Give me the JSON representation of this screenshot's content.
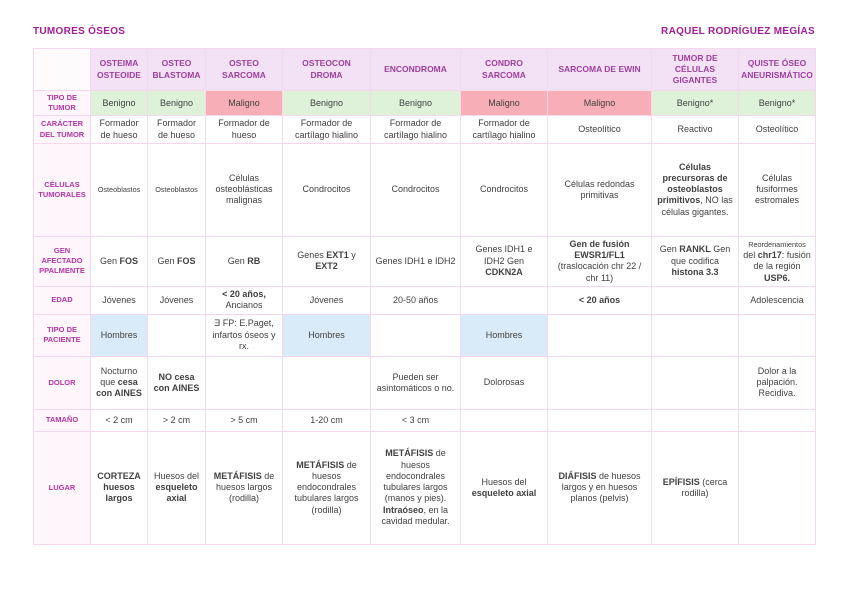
{
  "header": {
    "title": "TUMORES ÓSEOS",
    "author": "RAQUEL RODRÍGUEZ MEGÍAS"
  },
  "colors": {
    "accent_magenta": "#a51d96",
    "header_purple_bg": "#f3e2f6",
    "header_text": "#9e3f9d",
    "label_text": "#b536a8",
    "benign_green": "#def2da",
    "malign_pink": "#f8aeb6",
    "patient_blue": "#d9eaf8",
    "grid_pink": "#f5d7ee"
  },
  "table": {
    "columns": [
      "OSTEIMA OSTEOIDE",
      "OSTEO BLASTOMA",
      "OSTEO SARCOMA",
      "OSTEOCON DROMA",
      "ENCONDROMA",
      "CONDRO SARCOMA",
      "SARCOMA DE EWIN",
      "TUMOR DE CÉLULAS GIGANTES",
      "QUISTE ÓSEO ANEURISMÁTICO"
    ],
    "rows": [
      {
        "label": "TIPO DE TUMOR",
        "cells": [
          {
            "bg": "green",
            "parts": [
              {
                "t": "Benigno"
              }
            ]
          },
          {
            "bg": "green",
            "parts": [
              {
                "t": "Benigno"
              }
            ]
          },
          {
            "bg": "red",
            "parts": [
              {
                "t": "Maligno"
              }
            ]
          },
          {
            "bg": "green",
            "parts": [
              {
                "t": "Benigno"
              }
            ]
          },
          {
            "bg": "green",
            "parts": [
              {
                "t": "Benigno"
              }
            ]
          },
          {
            "bg": "red",
            "parts": [
              {
                "t": "Maligno"
              }
            ]
          },
          {
            "bg": "red",
            "parts": [
              {
                "t": "Maligno"
              }
            ]
          },
          {
            "bg": "green",
            "parts": [
              {
                "t": "Benigno*"
              }
            ]
          },
          {
            "bg": "green",
            "parts": [
              {
                "t": "Benigno*"
              }
            ]
          }
        ]
      },
      {
        "label": "CARÁCTER DEL TUMOR",
        "cells": [
          {
            "parts": [
              {
                "t": "Formador de hueso"
              }
            ]
          },
          {
            "parts": [
              {
                "t": "Formador de hueso"
              }
            ]
          },
          {
            "parts": [
              {
                "t": "Formador de hueso"
              }
            ]
          },
          {
            "parts": [
              {
                "t": "Formador de cartílago hialino"
              }
            ]
          },
          {
            "parts": [
              {
                "t": "Formador de cartílago hialino"
              }
            ]
          },
          {
            "parts": [
              {
                "t": "Formador de cartílago hialino"
              }
            ]
          },
          {
            "parts": [
              {
                "t": "Osteolítico"
              }
            ]
          },
          {
            "parts": [
              {
                "t": "Reactivo"
              }
            ]
          },
          {
            "parts": [
              {
                "t": "Osteolítico"
              }
            ]
          }
        ]
      },
      {
        "label": "CÉLULAS TUMORALES",
        "cells": [
          {
            "parts": [
              {
                "t": "Osteoblastos",
                "s": 1
              }
            ]
          },
          {
            "parts": [
              {
                "t": "Osteoblastos",
                "s": 1
              }
            ]
          },
          {
            "parts": [
              {
                "t": "Células osteoblásticas malignas"
              }
            ]
          },
          {
            "parts": [
              {
                "t": "Condrocitos"
              }
            ]
          },
          {
            "parts": [
              {
                "t": "Condrocitos"
              }
            ]
          },
          {
            "parts": [
              {
                "t": "Condrocitos"
              }
            ]
          },
          {
            "parts": [
              {
                "t": "Células redondas primitivas"
              }
            ]
          },
          {
            "parts": [
              {
                "t": "Células precursoras de osteoblastos primitivos",
                "b": 1
              },
              {
                "t": ", NO las células gigantes."
              }
            ]
          },
          {
            "parts": [
              {
                "t": "Células fusiformes estromales"
              }
            ]
          }
        ]
      },
      {
        "label": "GEN AFECTADO PPALMENTE",
        "cells": [
          {
            "parts": [
              {
                "t": "Gen "
              },
              {
                "t": "FOS",
                "b": 1
              }
            ]
          },
          {
            "parts": [
              {
                "t": "Gen "
              },
              {
                "t": "FOS",
                "b": 1
              }
            ]
          },
          {
            "parts": [
              {
                "t": "Gen "
              },
              {
                "t": "RB",
                "b": 1
              }
            ]
          },
          {
            "parts": [
              {
                "t": "Genes "
              },
              {
                "t": "EXT1",
                "b": 1
              },
              {
                "t": " y "
              },
              {
                "t": "EXT2",
                "b": 1
              }
            ]
          },
          {
            "parts": [
              {
                "t": "Genes IDH1 e IDH2"
              }
            ]
          },
          {
            "parts": [
              {
                "t": "Genes IDH1 e IDH2 Gen "
              },
              {
                "t": "CDKN2A",
                "b": 1
              }
            ]
          },
          {
            "parts": [
              {
                "t": "Gen de fusión EWSR1/FL1",
                "b": 1
              },
              {
                "t": " (traslocación chr 22 / chr 11)"
              }
            ]
          },
          {
            "parts": [
              {
                "t": "Gen "
              },
              {
                "t": "RANKL",
                "b": 1
              },
              {
                "t": " Gen que codifica "
              },
              {
                "t": "histona 3.3",
                "b": 1
              }
            ]
          },
          {
            "parts": [
              {
                "t": "Reordenamientos ",
                "s": 1
              },
              {
                "t": "del "
              },
              {
                "t": "chr17",
                "b": 1
              },
              {
                "t": ": fusión de la región "
              },
              {
                "t": "USP6.",
                "b": 1
              }
            ]
          }
        ]
      },
      {
        "label": "EDAD",
        "cells": [
          {
            "parts": [
              {
                "t": "Jóvenes"
              }
            ]
          },
          {
            "parts": [
              {
                "t": "Jóvenes"
              }
            ]
          },
          {
            "parts": [
              {
                "t": "< 20 años,",
                "b": 1
              },
              {
                "t": " Ancianos"
              }
            ]
          },
          {
            "parts": [
              {
                "t": "Jóvenes"
              }
            ]
          },
          {
            "parts": [
              {
                "t": "20-50 años"
              }
            ]
          },
          {
            "parts": []
          },
          {
            "parts": [
              {
                "t": "< 20 años",
                "b": 1
              }
            ]
          },
          {
            "parts": []
          },
          {
            "parts": [
              {
                "t": "Adolescencia"
              }
            ]
          }
        ]
      },
      {
        "label": "TIPO DE PACIENTE",
        "cells": [
          {
            "bg": "blue",
            "parts": [
              {
                "t": "Hombres"
              }
            ]
          },
          {
            "parts": []
          },
          {
            "parts": [
              {
                "t": "Ǝ FP: E.Paget, infartos óseos y rx."
              }
            ]
          },
          {
            "bg": "blue",
            "parts": [
              {
                "t": "Hombres"
              }
            ]
          },
          {
            "parts": []
          },
          {
            "bg": "blue",
            "parts": [
              {
                "t": "Hombres"
              }
            ]
          },
          {
            "parts": []
          },
          {
            "parts": []
          },
          {
            "parts": []
          }
        ]
      },
      {
        "label": "DOLOR",
        "cells": [
          {
            "parts": [
              {
                "t": "Nocturno que "
              },
              {
                "t": "cesa con AINES",
                "b": 1
              }
            ]
          },
          {
            "parts": [
              {
                "t": "NO cesa con AINES",
                "b": 1
              }
            ]
          },
          {
            "parts": []
          },
          {
            "parts": []
          },
          {
            "parts": [
              {
                "t": "Pueden ser asintomáticos o no."
              }
            ]
          },
          {
            "parts": [
              {
                "t": "Dolorosas"
              }
            ]
          },
          {
            "parts": []
          },
          {
            "parts": []
          },
          {
            "parts": [
              {
                "t": "Dolor a la palpación. Recidiva."
              }
            ]
          }
        ]
      },
      {
        "label": "TAMAÑO",
        "cells": [
          {
            "parts": [
              {
                "t": "< 2 cm"
              }
            ]
          },
          {
            "parts": [
              {
                "t": "> 2 cm"
              }
            ]
          },
          {
            "parts": [
              {
                "t": "> 5 cm"
              }
            ]
          },
          {
            "parts": [
              {
                "t": "1-20 cm"
              }
            ]
          },
          {
            "parts": [
              {
                "t": "< 3 cm"
              }
            ]
          },
          {
            "parts": []
          },
          {
            "parts": []
          },
          {
            "parts": []
          },
          {
            "parts": []
          }
        ]
      },
      {
        "label": "LUGAR",
        "cells": [
          {
            "parts": [
              {
                "t": "CORTEZA huesos largos",
                "b": 1
              }
            ]
          },
          {
            "parts": [
              {
                "t": "Huesos del "
              },
              {
                "t": "esqueleto axial",
                "b": 1
              }
            ]
          },
          {
            "parts": [
              {
                "t": "METÁFISIS",
                "b": 1
              },
              {
                "t": " de huesos largos (rodilla)"
              }
            ]
          },
          {
            "parts": [
              {
                "t": "METÁFISIS",
                "b": 1
              },
              {
                "t": " de huesos endocondrales tubulares largos (rodilla)"
              }
            ]
          },
          {
            "parts": [
              {
                "t": "METÁFISIS",
                "b": 1
              },
              {
                "t": " de huesos endocondrales tubulares largos (manos y pies). "
              },
              {
                "t": "Intraóseo",
                "b": 1
              },
              {
                "t": ", en la cavidad medular."
              }
            ]
          },
          {
            "parts": [
              {
                "t": "Huesos del "
              },
              {
                "t": "esqueleto axial",
                "b": 1
              }
            ]
          },
          {
            "parts": [
              {
                "t": "DIÁFISIS",
                "b": 1
              },
              {
                "t": " de huesos largos y en huesos planos (pelvis)"
              }
            ]
          },
          {
            "parts": [
              {
                "t": "EPÍFISIS",
                "b": 1
              },
              {
                "t": " (cerca rodilla)"
              }
            ]
          },
          {
            "parts": []
          }
        ]
      }
    ]
  }
}
